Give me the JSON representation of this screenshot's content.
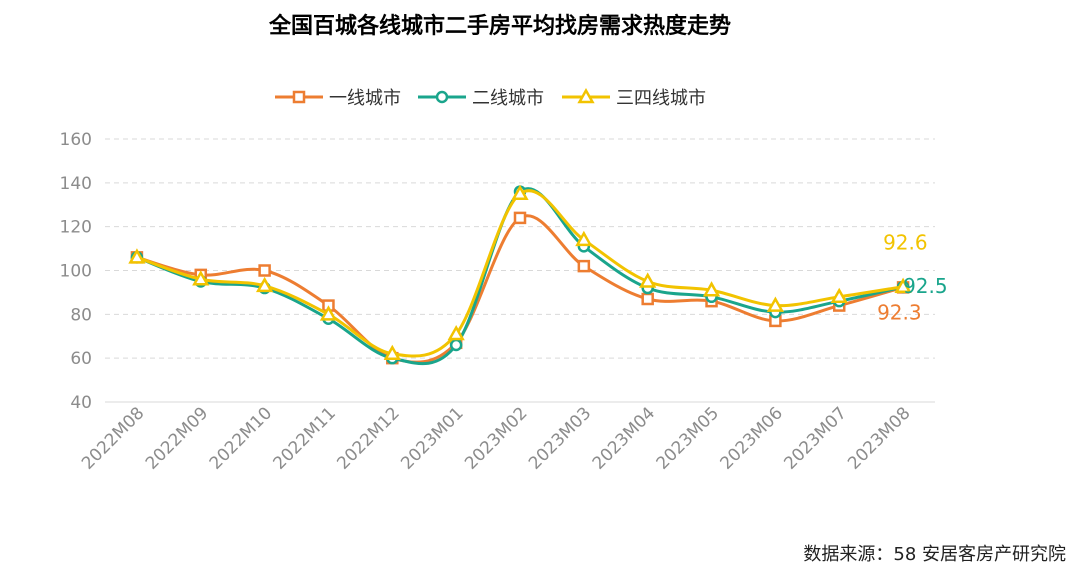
{
  "title": "全国百城各线城市二手房平均找房需求热度走势",
  "source": "数据来源：58 安居客房产研究院",
  "chart_data": {
    "type": "line",
    "categories": [
      "2022M08",
      "2022M09",
      "2022M10",
      "2022M11",
      "2022M12",
      "2023M01",
      "2023M02",
      "2023M03",
      "2023M04",
      "2023M05",
      "2023M06",
      "2023M07",
      "2023M08"
    ],
    "ylim": [
      40,
      160
    ],
    "yticks": [
      40,
      60,
      80,
      100,
      120,
      140,
      160
    ],
    "grid": true,
    "legend_position": "top",
    "series": [
      {
        "name": "一线城市",
        "color": "#ed7d31",
        "marker": "square",
        "values": [
          106,
          98,
          100,
          84,
          60,
          67,
          124,
          102,
          87,
          86,
          77,
          84,
          92.3
        ],
        "end_label": "92.3"
      },
      {
        "name": "二线城市",
        "color": "#1aa58c",
        "marker": "circle",
        "values": [
          106,
          95,
          92,
          78,
          60,
          66,
          136,
          111,
          92,
          88,
          81,
          86,
          92.5
        ],
        "end_label": "92.5"
      },
      {
        "name": "三四线城市",
        "color": "#f2c300",
        "marker": "triangle",
        "values": [
          106,
          96,
          93,
          80,
          62,
          71,
          135,
          114,
          95,
          91,
          84,
          88,
          92.6
        ],
        "end_label": "92.6"
      }
    ]
  }
}
